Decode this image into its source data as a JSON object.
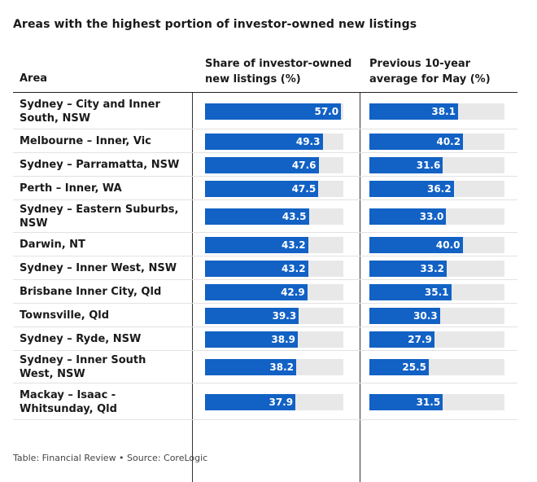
{
  "title": "Areas with the highest portion of investor-owned new listings",
  "headers": {
    "area": "Area",
    "col1": "Share of investor-owned new listings (%)",
    "col2": "Previous 10-year average for May (%)"
  },
  "footer": "Table: Financial Review • Source: CoreLogic",
  "colors": {
    "bar": "#1261c4",
    "track": "#e8e8e8"
  },
  "chart_data": {
    "type": "table",
    "columns": [
      "Area",
      "Share of investor-owned new listings (%)",
      "Previous 10-year average for May (%)"
    ],
    "xlim": [
      0,
      58
    ],
    "rows": [
      {
        "area": "Sydney – City and Inner South, NSW",
        "share": 57.0,
        "share_label": "57.0",
        "avg": 38.1,
        "avg_label": "38.1"
      },
      {
        "area": "Melbourne – Inner, Vic",
        "share": 49.3,
        "share_label": "49.3",
        "avg": 40.2,
        "avg_label": "40.2"
      },
      {
        "area": "Sydney – Parramatta, NSW",
        "share": 47.6,
        "share_label": "47.6",
        "avg": 31.6,
        "avg_label": "31.6"
      },
      {
        "area": "Perth – Inner, WA",
        "share": 47.5,
        "share_label": "47.5",
        "avg": 36.2,
        "avg_label": "36.2"
      },
      {
        "area": "Sydney – Eastern Suburbs, NSW",
        "share": 43.5,
        "share_label": "43.5",
        "avg": 33.0,
        "avg_label": "33.0"
      },
      {
        "area": "Darwin, NT",
        "share": 43.2,
        "share_label": "43.2",
        "avg": 40.0,
        "avg_label": "40.0"
      },
      {
        "area": "Sydney – Inner West, NSW",
        "share": 43.2,
        "share_label": "43.2",
        "avg": 33.2,
        "avg_label": "33.2"
      },
      {
        "area": "Brisbane Inner City, Qld",
        "share": 42.9,
        "share_label": "42.9",
        "avg": 35.1,
        "avg_label": "35.1"
      },
      {
        "area": "Townsville, Qld",
        "share": 39.3,
        "share_label": "39.3",
        "avg": 30.3,
        "avg_label": "30.3"
      },
      {
        "area": "Sydney – Ryde, NSW",
        "share": 38.9,
        "share_label": "38.9",
        "avg": 27.9,
        "avg_label": "27.9"
      },
      {
        "area": "Sydney – Inner South West, NSW",
        "share": 38.2,
        "share_label": "38.2",
        "avg": 25.5,
        "avg_label": "25.5"
      },
      {
        "area": "Mackay – Isaac - Whitsunday, Qld",
        "share": 37.9,
        "share_label": "37.9",
        "avg": 31.5,
        "avg_label": "31.5"
      }
    ]
  }
}
